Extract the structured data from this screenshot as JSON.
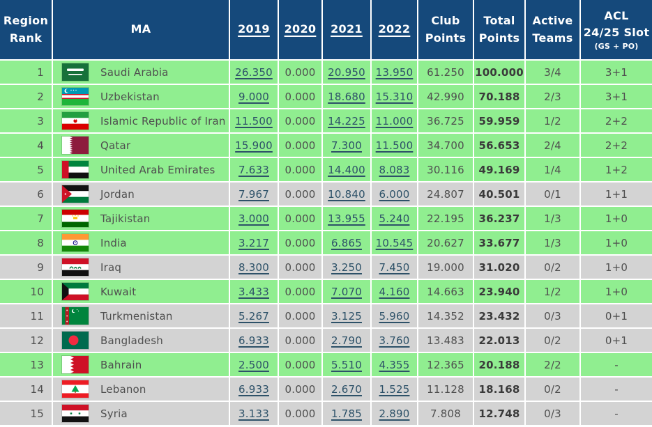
{
  "table": {
    "columns": [
      {
        "label": "Region Rank"
      },
      {
        "label": "MA"
      },
      {
        "label": "2019",
        "is_link": true
      },
      {
        "label": "2020",
        "is_link": true
      },
      {
        "label": "2021",
        "is_link": true
      },
      {
        "label": "2022",
        "is_link": true
      },
      {
        "label": "Club Points"
      },
      {
        "label": "Total Points"
      },
      {
        "label": "Active Teams"
      },
      {
        "label": "ACL",
        "label2": "24/25 Slot",
        "sublabel": "(GS + PO)"
      }
    ],
    "rows": [
      {
        "rank": "1",
        "country": "Saudi Arabia",
        "flag": "saudi-arabia",
        "y2019": "26.350",
        "y2020": "0.000",
        "y2021": "20.950",
        "y2022": "13.950",
        "club_points": "61.250",
        "total_points": "100.000",
        "active_teams": "3/4",
        "acl_slot": "3+1",
        "highlighted": true
      },
      {
        "rank": "2",
        "country": "Uzbekistan",
        "flag": "uzbekistan",
        "y2019": "9.000",
        "y2020": "0.000",
        "y2021": "18.680",
        "y2022": "15.310",
        "club_points": "42.990",
        "total_points": "70.188",
        "active_teams": "2/3",
        "acl_slot": "3+1",
        "highlighted": true
      },
      {
        "rank": "3",
        "country": "Islamic Republic of Iran",
        "flag": "iran",
        "y2019": "11.500",
        "y2020": "0.000",
        "y2021": "14.225",
        "y2022": "11.000",
        "club_points": "36.725",
        "total_points": "59.959",
        "active_teams": "1/2",
        "acl_slot": "2+2",
        "highlighted": true
      },
      {
        "rank": "4",
        "country": "Qatar",
        "flag": "qatar",
        "y2019": "15.900",
        "y2020": "0.000",
        "y2021": "7.300",
        "y2022": "11.500",
        "club_points": "34.700",
        "total_points": "56.653",
        "active_teams": "2/4",
        "acl_slot": "2+2",
        "highlighted": true
      },
      {
        "rank": "5",
        "country": "United Arab Emirates",
        "flag": "uae",
        "y2019": "7.633",
        "y2020": "0.000",
        "y2021": "14.400",
        "y2022": "8.083",
        "club_points": "30.116",
        "total_points": "49.169",
        "active_teams": "1/4",
        "acl_slot": "1+2",
        "highlighted": true
      },
      {
        "rank": "6",
        "country": "Jordan",
        "flag": "jordan",
        "y2019": "7.967",
        "y2020": "0.000",
        "y2021": "10.840",
        "y2022": "6.000",
        "club_points": "24.807",
        "total_points": "40.501",
        "active_teams": "0/1",
        "acl_slot": "1+1",
        "highlighted": false
      },
      {
        "rank": "7",
        "country": "Tajikistan",
        "flag": "tajikistan",
        "y2019": "3.000",
        "y2020": "0.000",
        "y2021": "13.955",
        "y2022": "5.240",
        "club_points": "22.195",
        "total_points": "36.237",
        "active_teams": "1/3",
        "acl_slot": "1+0",
        "highlighted": true
      },
      {
        "rank": "8",
        "country": "India",
        "flag": "india",
        "y2019": "3.217",
        "y2020": "0.000",
        "y2021": "6.865",
        "y2022": "10.545",
        "club_points": "20.627",
        "total_points": "33.677",
        "active_teams": "1/3",
        "acl_slot": "1+0",
        "highlighted": true
      },
      {
        "rank": "9",
        "country": "Iraq",
        "flag": "iraq",
        "y2019": "8.300",
        "y2020": "0.000",
        "y2021": "3.250",
        "y2022": "7.450",
        "club_points": "19.000",
        "total_points": "31.020",
        "active_teams": "0/2",
        "acl_slot": "1+0",
        "highlighted": false
      },
      {
        "rank": "10",
        "country": "Kuwait",
        "flag": "kuwait",
        "y2019": "3.433",
        "y2020": "0.000",
        "y2021": "7.070",
        "y2022": "4.160",
        "club_points": "14.663",
        "total_points": "23.940",
        "active_teams": "1/2",
        "acl_slot": "1+0",
        "highlighted": true
      },
      {
        "rank": "11",
        "country": "Turkmenistan",
        "flag": "turkmenistan",
        "y2019": "5.267",
        "y2020": "0.000",
        "y2021": "3.125",
        "y2022": "5.960",
        "club_points": "14.352",
        "total_points": "23.432",
        "active_teams": "0/3",
        "acl_slot": "0+1",
        "highlighted": false
      },
      {
        "rank": "12",
        "country": "Bangladesh",
        "flag": "bangladesh",
        "y2019": "6.933",
        "y2020": "0.000",
        "y2021": "2.790",
        "y2022": "3.760",
        "club_points": "13.483",
        "total_points": "22.013",
        "active_teams": "0/2",
        "acl_slot": "0+1",
        "highlighted": false
      },
      {
        "rank": "13",
        "country": "Bahrain",
        "flag": "bahrain",
        "y2019": "2.500",
        "y2020": "0.000",
        "y2021": "5.510",
        "y2022": "4.355",
        "club_points": "12.365",
        "total_points": "20.188",
        "active_teams": "2/2",
        "acl_slot": "-",
        "highlighted": true
      },
      {
        "rank": "14",
        "country": "Lebanon",
        "flag": "lebanon",
        "y2019": "6.933",
        "y2020": "0.000",
        "y2021": "2.670",
        "y2022": "1.525",
        "club_points": "11.128",
        "total_points": "18.168",
        "active_teams": "0/2",
        "acl_slot": "-",
        "highlighted": false
      },
      {
        "rank": "15",
        "country": "Syria",
        "flag": "syria",
        "y2019": "3.133",
        "y2020": "0.000",
        "y2021": "1.785",
        "y2022": "2.890",
        "club_points": "7.808",
        "total_points": "12.748",
        "active_teams": "0/3",
        "acl_slot": "-",
        "highlighted": false
      }
    ]
  },
  "colors": {
    "header_bg": "#15497b",
    "header_text": "#ffffff",
    "row_green": "#90ee90",
    "row_gray": "#d3d3d3",
    "body_text": "#4f4f4f",
    "total_text": "#3a3a3a",
    "link": "#2d5168"
  }
}
